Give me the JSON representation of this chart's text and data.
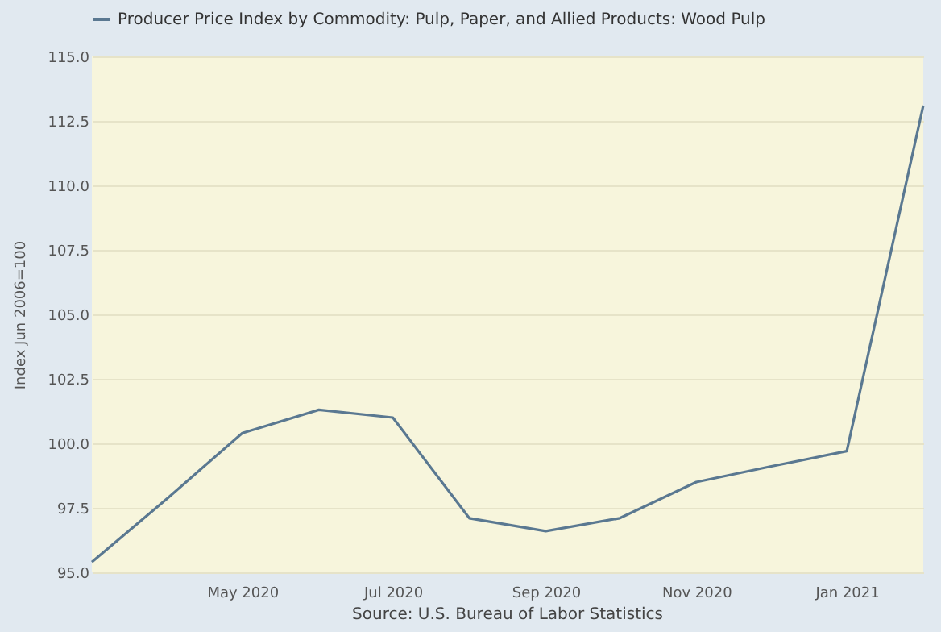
{
  "chart_data": {
    "type": "line",
    "ylabel": "Index Jun 2006=100",
    "x": [
      "2020-03-01",
      "2020-04-01",
      "2020-05-01",
      "2020-06-01",
      "2020-07-01",
      "2020-08-01",
      "2020-09-01",
      "2020-10-01",
      "2020-11-01",
      "2020-12-01",
      "2021-01-01",
      "2021-02-01"
    ],
    "series": [
      {
        "name": "Producer Price Index by Commodity: Pulp, Paper, and Allied Products: Wood Pulp",
        "color": "#5a7891",
        "values": [
          95.4,
          97.9,
          100.4,
          101.3,
          101.0,
          97.1,
          96.6,
          97.1,
          98.5,
          99.1,
          99.7,
          113.1
        ]
      }
    ],
    "xlim": [
      "2020-03-01",
      "2021-02-01"
    ],
    "xticks": [
      {
        "value": "2020-05-01",
        "label": "May 2020"
      },
      {
        "value": "2020-07-01",
        "label": "Jul 2020"
      },
      {
        "value": "2020-09-01",
        "label": "Sep 2020"
      },
      {
        "value": "2020-11-01",
        "label": "Nov 2020"
      },
      {
        "value": "2021-01-01",
        "label": "Jan 2021"
      }
    ],
    "ylim": [
      95.0,
      115.0
    ],
    "yticks": [
      {
        "value": 95,
        "label": "95.0"
      },
      {
        "value": 97.5,
        "label": "97.5"
      },
      {
        "value": 100,
        "label": "100.0"
      },
      {
        "value": 102.5,
        "label": "102.5"
      },
      {
        "value": 105,
        "label": "105.0"
      },
      {
        "value": 107.5,
        "label": "107.5"
      },
      {
        "value": 110,
        "label": "110.0"
      },
      {
        "value": 112.5,
        "label": "112.5"
      },
      {
        "value": 115,
        "label": "115.0"
      }
    ],
    "grid": "y",
    "legend": "top left",
    "marker": "none",
    "line_style": "solid",
    "annotations": [
      "Source: U.S. Bureau of Labor Statistics"
    ]
  }
}
